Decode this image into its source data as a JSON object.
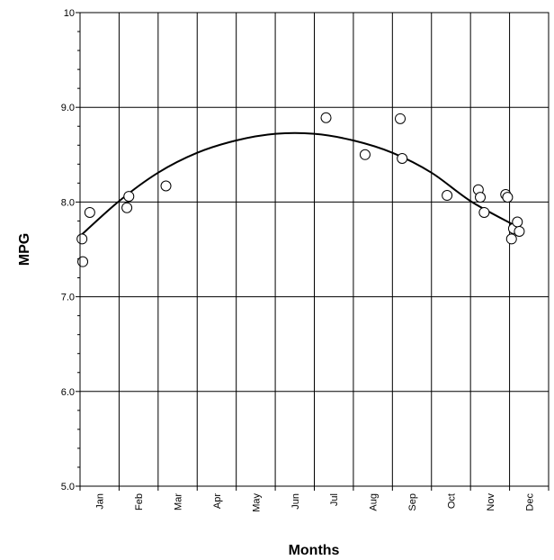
{
  "chart_data": {
    "type": "scatter",
    "title": "",
    "xlabel": "Months",
    "ylabel": "MPG",
    "ylim": [
      5.0,
      10.0
    ],
    "yticks": [
      "5.0",
      "6.0",
      "7.0",
      "8.0",
      "9.0",
      "10"
    ],
    "xlim": [
      0,
      12
    ],
    "categories": [
      "Jan",
      "Feb",
      "Mar",
      "Apr",
      "May",
      "Jun",
      "Jul",
      "Aug",
      "Sep",
      "Oct",
      "Nov",
      "Dec"
    ],
    "grid": true,
    "legend": "none",
    "colors": {
      "line": "#000000",
      "marker_fill": "#ffffff",
      "marker_stroke": "#000000",
      "grid": "#000000"
    },
    "series": [
      {
        "type": "scatter",
        "points": [
          {
            "x": 0.05,
            "y": 7.61
          },
          {
            "x": 0.07,
            "y": 7.37
          },
          {
            "x": 0.25,
            "y": 7.89
          },
          {
            "x": 1.2,
            "y": 7.94
          },
          {
            "x": 1.25,
            "y": 8.06
          },
          {
            "x": 2.2,
            "y": 8.17
          },
          {
            "x": 6.3,
            "y": 8.89
          },
          {
            "x": 7.3,
            "y": 8.5
          },
          {
            "x": 8.2,
            "y": 8.88
          },
          {
            "x": 8.25,
            "y": 8.46
          },
          {
            "x": 9.4,
            "y": 8.07
          },
          {
            "x": 10.2,
            "y": 8.13
          },
          {
            "x": 10.25,
            "y": 8.05
          },
          {
            "x": 10.35,
            "y": 7.89
          },
          {
            "x": 10.9,
            "y": 8.08
          },
          {
            "x": 10.95,
            "y": 8.05
          },
          {
            "x": 11.05,
            "y": 7.61
          },
          {
            "x": 11.1,
            "y": 7.72
          },
          {
            "x": 11.2,
            "y": 7.79
          },
          {
            "x": 11.25,
            "y": 7.69
          }
        ]
      },
      {
        "type": "line",
        "points": [
          {
            "x": 0.0,
            "y": 7.64
          },
          {
            "x": 1.0,
            "y": 8.01
          },
          {
            "x": 2.0,
            "y": 8.31
          },
          {
            "x": 3.0,
            "y": 8.52
          },
          {
            "x": 4.0,
            "y": 8.65
          },
          {
            "x": 5.0,
            "y": 8.72
          },
          {
            "x": 6.0,
            "y": 8.72
          },
          {
            "x": 7.0,
            "y": 8.65
          },
          {
            "x": 8.0,
            "y": 8.52
          },
          {
            "x": 9.0,
            "y": 8.31
          },
          {
            "x": 10.0,
            "y": 8.01
          },
          {
            "x": 11.1,
            "y": 7.76
          }
        ]
      }
    ]
  }
}
